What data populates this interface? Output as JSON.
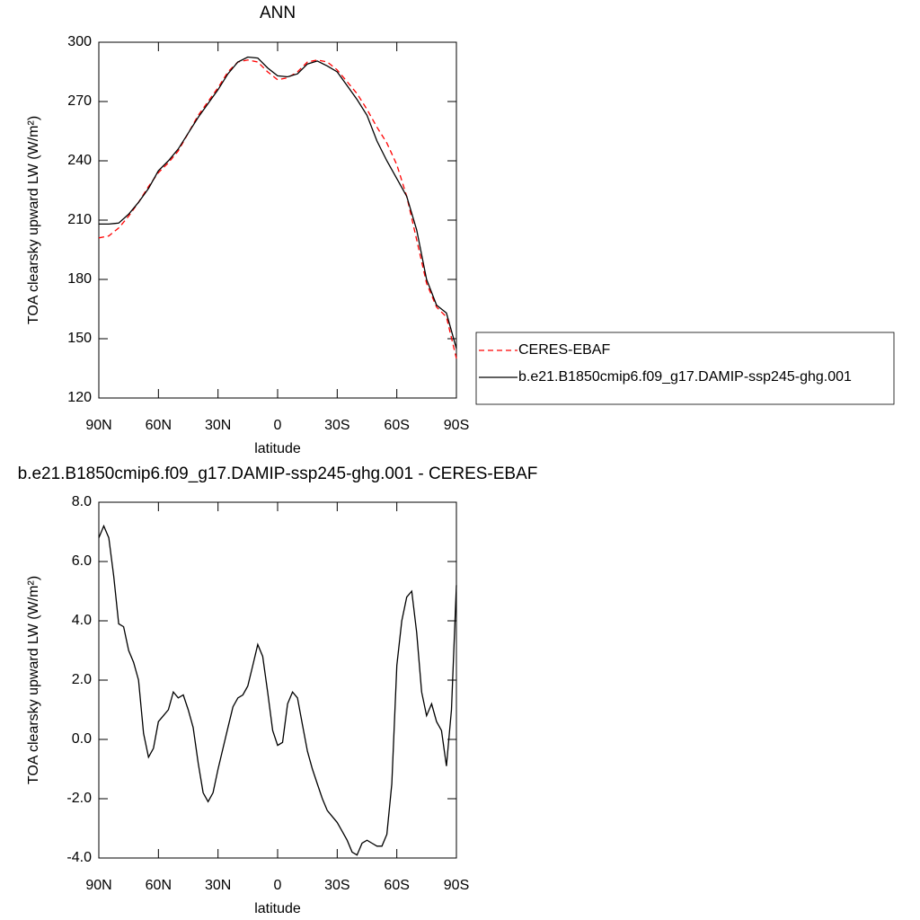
{
  "chart_data": [
    {
      "type": "line",
      "title": "ANN",
      "x_label": "latitude",
      "y_label": "TOA clearsky upward LW (W/m²)",
      "xlim": [
        90,
        -90
      ],
      "ylim": [
        120,
        300
      ],
      "xticks": [
        {
          "value": 90,
          "label": "90N"
        },
        {
          "value": 60,
          "label": "60N"
        },
        {
          "value": 30,
          "label": "30N"
        },
        0,
        {
          "value": -30,
          "label": "30S"
        },
        {
          "value": -60,
          "label": "60S"
        },
        {
          "value": -90,
          "label": "90S"
        }
      ],
      "yticks": [
        120,
        150,
        180,
        210,
        240,
        270,
        300
      ],
      "legend": "right",
      "x": [
        90,
        85,
        80,
        75,
        70,
        65,
        60,
        55,
        50,
        45,
        40,
        35,
        30,
        25,
        20,
        15,
        10,
        5,
        0,
        -5,
        -10,
        -15,
        -20,
        -25,
        -30,
        -35,
        -40,
        -45,
        -50,
        -55,
        -60,
        -65,
        -70,
        -75,
        -80,
        -85,
        -90
      ],
      "series": [
        {
          "name": "CERES-EBAF",
          "color": "#ff0000",
          "line_style": "dashed",
          "values": [
            201,
            202,
            206,
            212,
            219,
            227,
            234,
            239,
            245,
            254,
            263,
            270,
            277,
            285,
            290,
            291,
            290,
            285,
            281,
            282,
            285,
            290,
            291,
            290,
            286,
            280,
            274,
            266,
            257,
            249,
            238,
            222,
            200,
            178,
            166,
            161,
            140
          ]
        },
        {
          "name": "b.e21.B1850cmip6.f09_g17.DAMIP-ssp245-ghg.001",
          "color": "#000000",
          "line_style": "solid",
          "values": [
            208,
            208,
            208.5,
            213,
            219,
            226,
            235,
            240,
            246,
            254,
            262,
            269,
            276,
            284,
            290,
            292.5,
            292,
            287,
            283,
            282.5,
            284,
            289,
            290.5,
            288,
            285,
            278,
            271,
            263,
            250,
            240,
            231,
            222,
            205,
            180,
            167,
            163,
            145
          ]
        }
      ]
    },
    {
      "type": "line",
      "title": "b.e21.B1850cmip6.f09_g17.DAMIP-ssp245-ghg.001 - CERES-EBAF",
      "x_label": "latitude",
      "y_label": "TOA clearsky upward LW (W/m²)",
      "xlim": [
        90,
        -90
      ],
      "ylim": [
        -4,
        8
      ],
      "xticks": [
        {
          "value": 90,
          "label": "90N"
        },
        {
          "value": 60,
          "label": "60N"
        },
        {
          "value": 30,
          "label": "30N"
        },
        0,
        {
          "value": -30,
          "label": "30S"
        },
        {
          "value": -60,
          "label": "60S"
        },
        {
          "value": -90,
          "label": "90S"
        }
      ],
      "yticks": [
        {
          "value": -4,
          "label": "-4.0"
        },
        {
          "value": -2,
          "label": "-2.0"
        },
        {
          "value": 0,
          "label": "0.0"
        },
        {
          "value": 2,
          "label": "2.0"
        },
        {
          "value": 4,
          "label": "4.0"
        },
        {
          "value": 6,
          "label": "6.0"
        },
        {
          "value": 8,
          "label": "8.0"
        }
      ],
      "color": "#000000",
      "x": [
        90,
        87.5,
        85,
        82.5,
        80,
        77.5,
        75,
        72.5,
        70,
        67.5,
        65,
        62.5,
        60,
        57.5,
        55,
        52.5,
        50,
        47.5,
        45,
        42.5,
        40,
        37.5,
        35,
        32.5,
        30,
        27.5,
        25,
        22.5,
        20,
        17.5,
        15,
        12.5,
        10,
        7.5,
        5,
        2.5,
        0,
        -2.5,
        -5,
        -7.5,
        -10,
        -12.5,
        -15,
        -17.5,
        -20,
        -22.5,
        -25,
        -27.5,
        -30,
        -32.5,
        -35,
        -37.5,
        -40,
        -42.5,
        -45,
        -47.5,
        -50,
        -52.5,
        -55,
        -57.5,
        -60,
        -62.5,
        -65,
        -67.5,
        -70,
        -72.5,
        -75,
        -77.5,
        -80,
        -82.5,
        -85,
        -87.5,
        -90
      ],
      "values": [
        6.8,
        7.2,
        6.8,
        5.5,
        3.9,
        3.8,
        3.0,
        2.6,
        2.0,
        0.2,
        -0.6,
        -0.3,
        0.6,
        0.8,
        1.0,
        1.6,
        1.4,
        1.5,
        1.0,
        0.4,
        -0.8,
        -1.8,
        -2.1,
        -1.8,
        -1.0,
        -0.3,
        0.4,
        1.1,
        1.4,
        1.5,
        1.8,
        2.5,
        3.2,
        2.8,
        1.6,
        0.3,
        -0.2,
        -0.1,
        1.2,
        1.6,
        1.4,
        0.5,
        -0.4,
        -1.0,
        -1.5,
        -2.0,
        -2.4,
        -2.6,
        -2.8,
        -3.1,
        -3.4,
        -3.8,
        -3.9,
        -3.5,
        -3.4,
        -3.5,
        -3.6,
        -3.6,
        -3.2,
        -1.5,
        2.5,
        4.0,
        4.8,
        5.0,
        3.6,
        1.6,
        0.8,
        1.2,
        0.6,
        0.3,
        -0.9,
        1.0,
        5.2
      ]
    }
  ]
}
